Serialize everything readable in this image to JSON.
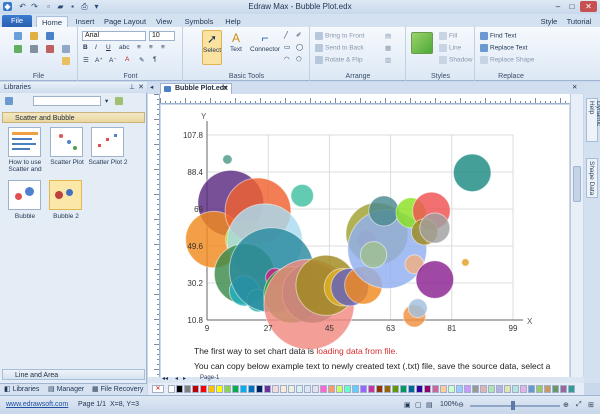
{
  "window": {
    "title": "Edraw Max - Bubble Plot.edx"
  },
  "ribbon_tabs": [
    "File",
    "Home",
    "Insert",
    "Page Layout",
    "View",
    "Symbols",
    "Help"
  ],
  "ribbon_right": {
    "style": "Style",
    "tutorial": "Tutorial"
  },
  "ribbon": {
    "file_group": "File",
    "font_group": "Font",
    "font_name": "Arial",
    "font_size": "10",
    "basic_tools_group": "Basic Tools",
    "select": "Select",
    "text": "Text",
    "connector": "Connector",
    "arrange_group": "Arrange",
    "bring_to_front": "Bring to Front",
    "send_to_back": "Send to Back",
    "rotate_flip": "Rotate & Flip",
    "styles_group": "Styles",
    "fill": "Fill",
    "line": "Line",
    "shadow": "Shadow",
    "replace_group": "Replace",
    "find_text": "Find Text",
    "replace_text": "Replace Text",
    "replace_shape": "Replace Shape"
  },
  "libraries": {
    "header": "Libraries",
    "category_open": "Scatter and Bubble",
    "items": [
      "How to use Scatter and",
      "Scatter Plot",
      "Scatter Plot 2",
      "Bubble",
      "Bubble 2"
    ],
    "category_closed": "Line and Area",
    "bottom_tabs": [
      "Libraries",
      "Manager",
      "File Recovery"
    ]
  },
  "document": {
    "tab_name": "Bubble Plot.edx",
    "right_tabs": [
      "Dynamic Help",
      "Shape Data"
    ],
    "page_label": "Page-1",
    "text_line1_prefix": "The first way to set chart data is ",
    "text_line1_link": "loading data from file.",
    "text_line2": "You can copy below example text to newly created text (.txt) file, save the source data, select a"
  },
  "status": {
    "url": "www.edrawsoft.com",
    "page": "Page 1/1",
    "coords": "X=8, Y=3",
    "zoom": "100%"
  },
  "chart_data": {
    "type": "scatter",
    "variant": "bubble",
    "xlabel": "X",
    "ylabel": "Y",
    "xlim": [
      9,
      99
    ],
    "ylim": [
      10.8,
      107.8
    ],
    "x_ticks": [
      9,
      27,
      45,
      63,
      81,
      99
    ],
    "y_ticks": [
      10.8,
      30.2,
      49.6,
      69,
      88.4,
      107.8
    ],
    "grid": true,
    "points": [
      {
        "x": 15,
        "y": 95,
        "r": 0.5,
        "color": "#4a9a86"
      },
      {
        "x": 16,
        "y": 72,
        "r": 3.5,
        "color": "#5a2a80"
      },
      {
        "x": 11,
        "y": 53,
        "r": 3,
        "color": "#f08a20"
      },
      {
        "x": 20,
        "y": 53,
        "r": 2,
        "color": "#a8e020"
      },
      {
        "x": 24,
        "y": 68,
        "r": 3.5,
        "color": "#f06030"
      },
      {
        "x": 26,
        "y": 52,
        "r": 4,
        "color": "#a8dcf0"
      },
      {
        "x": 20,
        "y": 35,
        "r": 3.2,
        "color": "#3a8a4a"
      },
      {
        "x": 20,
        "y": 26,
        "r": 1.6,
        "color": "#20b0c0"
      },
      {
        "x": 24,
        "y": 21,
        "r": 1.2,
        "color": "#20b0a0"
      },
      {
        "x": 28,
        "y": 37,
        "r": 4.5,
        "color": "#2a8aa0"
      },
      {
        "x": 29,
        "y": 33,
        "r": 1,
        "color": "#d02080"
      },
      {
        "x": 34,
        "y": 24,
        "r": 3,
        "color": "#2aa02a"
      },
      {
        "x": 40,
        "y": 25,
        "r": 3.2,
        "color": "#1a6a60"
      },
      {
        "x": 39,
        "y": 19,
        "r": 4.8,
        "color": "#f08a80"
      },
      {
        "x": 37,
        "y": 76,
        "r": 1.2,
        "color": "#40c0a0"
      },
      {
        "x": 44,
        "y": 29,
        "r": 3.2,
        "color": "#a08a20"
      },
      {
        "x": 49,
        "y": 28,
        "r": 2,
        "color": "#e0b020"
      },
      {
        "x": 51,
        "y": 28,
        "r": 2,
        "color": "#6060c0"
      },
      {
        "x": 55,
        "y": 29,
        "r": 2,
        "color": "#f08a20"
      },
      {
        "x": 56,
        "y": 53,
        "r": 1,
        "color": "#e02020"
      },
      {
        "x": 59,
        "y": 56,
        "r": 3.3,
        "color": "#a0a030"
      },
      {
        "x": 62,
        "y": 48,
        "r": 4.2,
        "color": "#90b0f0"
      },
      {
        "x": 58,
        "y": 45,
        "r": 1.4,
        "color": "#a0c090"
      },
      {
        "x": 61,
        "y": 68,
        "r": 1.6,
        "color": "#4a8a90"
      },
      {
        "x": 69,
        "y": 67,
        "r": 1.6,
        "color": "#8ae020"
      },
      {
        "x": 75,
        "y": 68,
        "r": 2,
        "color": "#f05050"
      },
      {
        "x": 73,
        "y": 57,
        "r": 1.4,
        "color": "#a08a20"
      },
      {
        "x": 76,
        "y": 59,
        "r": 1.6,
        "color": "#a0a0a0"
      },
      {
        "x": 70,
        "y": 40,
        "r": 1,
        "color": "#f0b080"
      },
      {
        "x": 76,
        "y": 32,
        "r": 2,
        "color": "#8a2090"
      },
      {
        "x": 70,
        "y": 13,
        "r": 1.2,
        "color": "#f09040"
      },
      {
        "x": 71,
        "y": 17,
        "r": 1,
        "color": "#a0c0e0"
      },
      {
        "x": 87,
        "y": 88,
        "r": 2,
        "color": "#1a8a80"
      },
      {
        "x": 85,
        "y": 41,
        "r": 0.4,
        "color": "#e0a020"
      }
    ]
  }
}
